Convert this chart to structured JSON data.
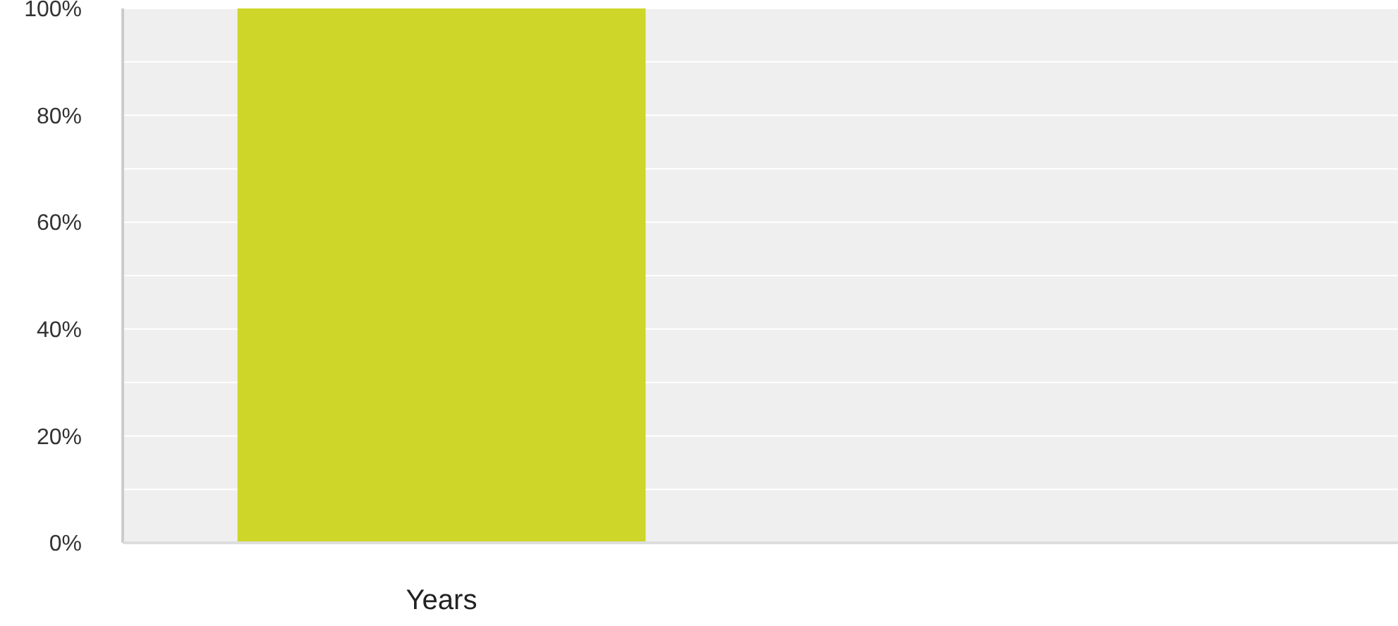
{
  "chart_data": {
    "type": "bar",
    "categories": [
      "Years"
    ],
    "values": [
      100
    ],
    "color": "#cdd629",
    "ylim": [
      0,
      100
    ],
    "yticks": [
      {
        "value": 0,
        "label": "0%"
      },
      {
        "value": 10,
        "label": null
      },
      {
        "value": 20,
        "label": "20%"
      },
      {
        "value": 30,
        "label": null
      },
      {
        "value": 40,
        "label": "40%"
      },
      {
        "value": 50,
        "label": null
      },
      {
        "value": 60,
        "label": "60%"
      },
      {
        "value": 70,
        "label": null
      },
      {
        "value": 80,
        "label": "80%"
      },
      {
        "value": 90,
        "label": null
      },
      {
        "value": 100,
        "label": "100%"
      }
    ],
    "grid": "y"
  }
}
